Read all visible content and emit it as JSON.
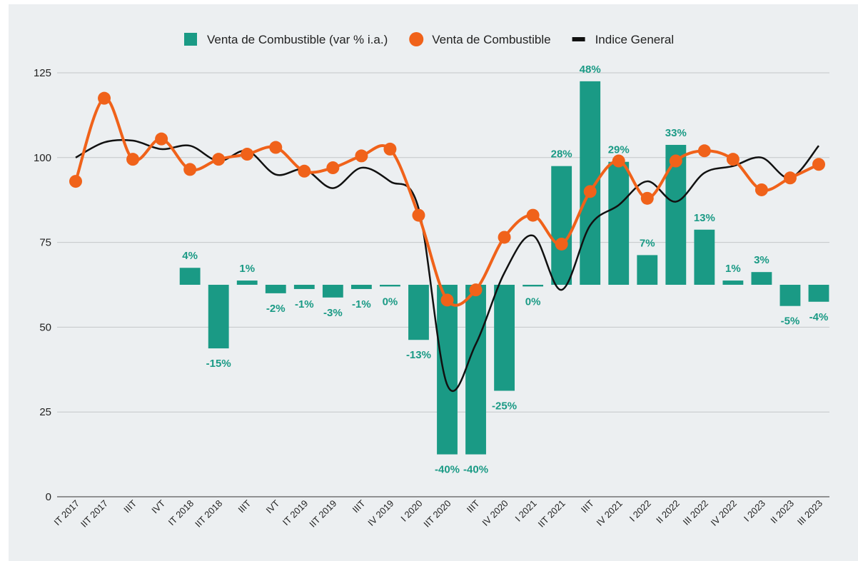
{
  "chart_data": {
    "type": "combo",
    "categories": [
      "IT 2017",
      "IIT 2017",
      "IIIT",
      "IVT",
      "IT 2018",
      "IIT 2018",
      "IIIT",
      "IVT",
      "IT 2019",
      "IIT 2019",
      "IIIT",
      "IV 2019",
      "I 2020",
      "IIT 2020",
      "IIIT",
      "IV 2020",
      "I 2021",
      "IIT 2021",
      "IIIT",
      "IV 2021",
      "I 2022",
      "II 2022",
      "III 2022",
      "IV 2022",
      "I 2023",
      "II 2023",
      "III 2023"
    ],
    "ylim": [
      0,
      125
    ],
    "yticks": [
      0,
      25,
      50,
      75,
      100,
      125
    ],
    "y2lim": [
      -50,
      50
    ],
    "grid": true,
    "legend": "top",
    "series": [
      {
        "name": "Venta de Combustible (var % i.a.)",
        "type": "bar",
        "axis": "y2",
        "color": "#1a9a85",
        "values": [
          null,
          null,
          null,
          null,
          4,
          -15,
          1,
          -2,
          -1,
          -3,
          -1,
          -0.4,
          -13,
          -40,
          -40,
          -25,
          -0.4,
          28,
          48,
          29,
          7,
          33,
          13,
          1,
          3,
          -5,
          -4
        ],
        "value_labels": [
          null,
          null,
          null,
          null,
          "4%",
          "-15%",
          "1%",
          "-2%",
          "-1%",
          "-3%",
          "-1%",
          "0%",
          "-13%",
          "-40%",
          "-40%",
          "-25%",
          "0%",
          "28%",
          "48%",
          "29%",
          "7%",
          "33%",
          "13%",
          "1%",
          "3%",
          "-5%",
          "-4%"
        ]
      },
      {
        "name": "Venta de Combustible",
        "type": "line",
        "markers": true,
        "color": "#f0621a",
        "values": [
          93,
          117.5,
          99.5,
          105.5,
          96.5,
          99.5,
          101,
          103,
          96,
          97,
          100.5,
          102.5,
          83,
          58,
          61,
          76.5,
          83,
          74.5,
          90,
          99,
          88,
          99,
          102,
          99.5,
          90.5,
          94,
          98
        ]
      },
      {
        "name": "Indice General",
        "type": "line",
        "markers": false,
        "color": "#111111",
        "values": [
          100,
          104.5,
          105,
          102.5,
          103.5,
          99,
          102,
          95,
          96.5,
          91,
          97,
          93,
          85,
          33,
          45,
          66,
          77,
          61,
          80,
          86,
          93,
          87,
          95.5,
          97.5,
          100,
          94,
          103.5
        ]
      }
    ]
  }
}
